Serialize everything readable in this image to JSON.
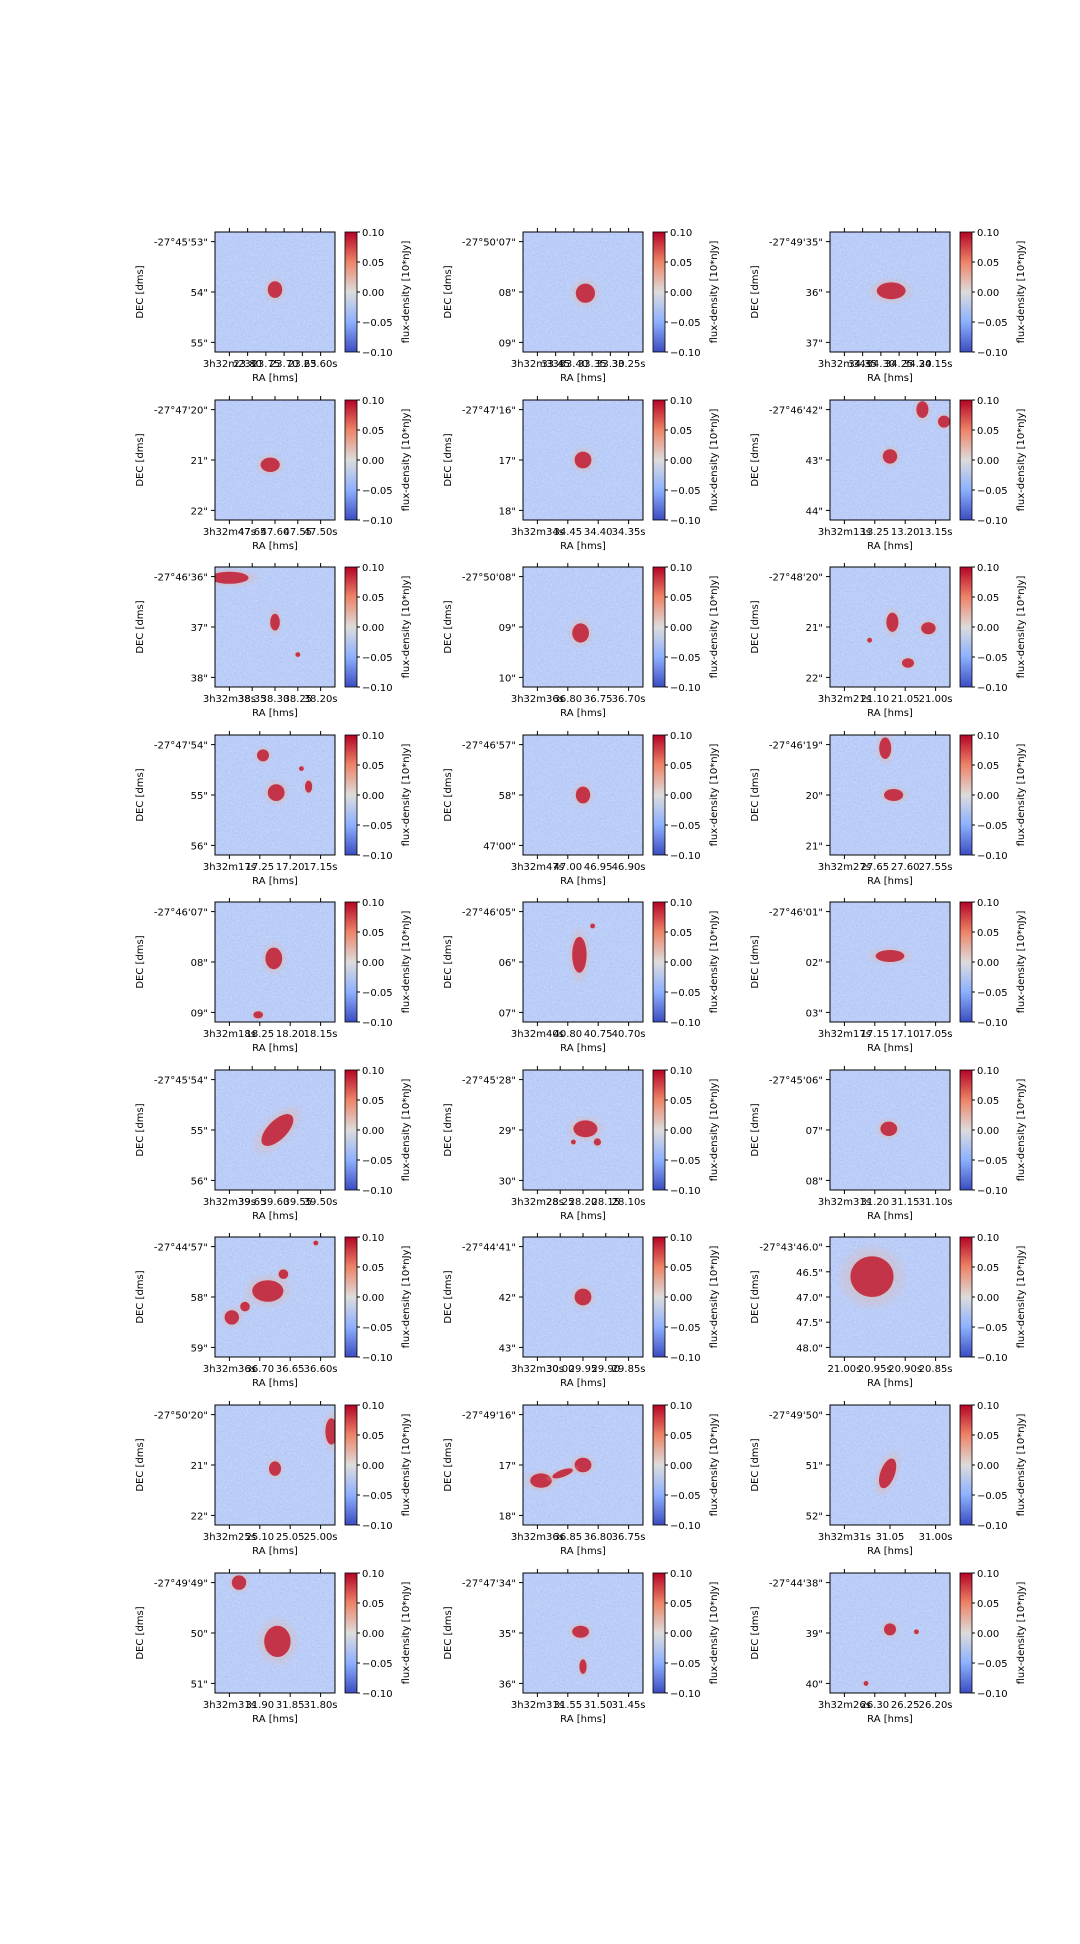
{
  "chart_data": {
    "type": "heatmap",
    "layout": {
      "rows": 9,
      "cols": 3
    },
    "colormap": "coolwarm",
    "clim": [
      -0.1,
      0.1
    ],
    "colorbar": {
      "label": "flux-density [10*nJy]",
      "ticks": [
        "0.10",
        "0.05",
        "0.00",
        "−0.05",
        "−0.10"
      ]
    },
    "panels": [
      {
        "xlabel": "RA [hms]",
        "ylabel": "DEC [dms]",
        "xticks": [
          "3h32m23s",
          "23.80",
          "23.75",
          "23.70",
          "23.65",
          "23.60s"
        ],
        "yticks": [
          "-27°45'53\"",
          "54\"",
          "55\""
        ],
        "sources": [
          {
            "x": 0.5,
            "y": 0.48,
            "rx": 0.06,
            "ry": 0.07
          }
        ]
      },
      {
        "xlabel": "RA [hms]",
        "ylabel": "DEC [dms]",
        "xticks": [
          "3h32m33s",
          "33.45",
          "33.40",
          "33.35",
          "33.30",
          "33.25s"
        ],
        "yticks": [
          "-27°50'07\"",
          "08\"",
          "09\""
        ],
        "sources": [
          {
            "x": 0.52,
            "y": 0.51,
            "rx": 0.08,
            "ry": 0.08
          }
        ]
      },
      {
        "xlabel": "RA [hms]",
        "ylabel": "DEC [dms]",
        "xticks": [
          "3h32m34s",
          "34.35",
          "34.30",
          "34.25",
          "34.20",
          "34.15s"
        ],
        "yticks": [
          "-27°49'35\"",
          "36\"",
          "37\""
        ],
        "sources": [
          {
            "x": 0.51,
            "y": 0.49,
            "rx": 0.12,
            "ry": 0.07
          }
        ]
      },
      {
        "xlabel": "RA [hms]",
        "ylabel": "DEC [dms]",
        "xticks": [
          "3h32m47s",
          "47.65",
          "47.60",
          "47.55",
          "47.50s"
        ],
        "yticks": [
          "-27°47'20\"",
          "21\"",
          "22\""
        ],
        "sources": [
          {
            "x": 0.46,
            "y": 0.54,
            "rx": 0.08,
            "ry": 0.06
          }
        ]
      },
      {
        "xlabel": "RA [hms]",
        "ylabel": "DEC [dms]",
        "xticks": [
          "3h32m34s",
          "34.45",
          "34.40",
          "34.35s"
        ],
        "yticks": [
          "-27°47'16\"",
          "17\"",
          "18\""
        ],
        "sources": [
          {
            "x": 0.5,
            "y": 0.5,
            "rx": 0.07,
            "ry": 0.07
          }
        ]
      },
      {
        "xlabel": "RA [hms]",
        "ylabel": "DEC [dms]",
        "xticks": [
          "3h32m13s",
          "13.25",
          "13.20",
          "13.15s"
        ],
        "yticks": [
          "-27°46'42\"",
          "43\"",
          "44\""
        ],
        "sources": [
          {
            "x": 0.5,
            "y": 0.47,
            "rx": 0.06,
            "ry": 0.06
          },
          {
            "x": 0.77,
            "y": 0.08,
            "rx": 0.05,
            "ry": 0.07
          },
          {
            "x": 0.95,
            "y": 0.18,
            "rx": 0.05,
            "ry": 0.05
          }
        ]
      },
      {
        "xlabel": "RA [hms]",
        "ylabel": "DEC [dms]",
        "xticks": [
          "3h32m38s",
          "38.35",
          "38.30",
          "38.25",
          "38.20s"
        ],
        "yticks": [
          "-27°46'36\"",
          "37\"",
          "38\""
        ],
        "sources": [
          {
            "x": 0.12,
            "y": 0.09,
            "rx": 0.16,
            "ry": 0.05
          },
          {
            "x": 0.5,
            "y": 0.46,
            "rx": 0.04,
            "ry": 0.07
          },
          {
            "x": 0.69,
            "y": 0.73,
            "rx": 0.02,
            "ry": 0.02
          }
        ]
      },
      {
        "xlabel": "RA [hms]",
        "ylabel": "DEC [dms]",
        "xticks": [
          "3h32m36s",
          "36.80",
          "36.75",
          "36.70s"
        ],
        "yticks": [
          "-27°50'08\"",
          "09\"",
          "10\""
        ],
        "sources": [
          {
            "x": 0.48,
            "y": 0.55,
            "rx": 0.07,
            "ry": 0.08
          }
        ]
      },
      {
        "xlabel": "RA [hms]",
        "ylabel": "DEC [dms]",
        "xticks": [
          "3h32m21s",
          "21.10",
          "21.05",
          "21.00s"
        ],
        "yticks": [
          "-27°48'20\"",
          "21\"",
          "22\""
        ],
        "sources": [
          {
            "x": 0.52,
            "y": 0.46,
            "rx": 0.05,
            "ry": 0.08
          },
          {
            "x": 0.82,
            "y": 0.51,
            "rx": 0.06,
            "ry": 0.05
          },
          {
            "x": 0.65,
            "y": 0.8,
            "rx": 0.05,
            "ry": 0.04
          },
          {
            "x": 0.33,
            "y": 0.61,
            "rx": 0.02,
            "ry": 0.02
          }
        ]
      },
      {
        "xlabel": "RA [hms]",
        "ylabel": "DEC [dms]",
        "xticks": [
          "3h32m17s",
          "17.25",
          "17.20",
          "17.15s"
        ],
        "yticks": [
          "-27°47'54\"",
          "55\"",
          "56\""
        ],
        "sources": [
          {
            "x": 0.51,
            "y": 0.48,
            "rx": 0.07,
            "ry": 0.07
          },
          {
            "x": 0.4,
            "y": 0.17,
            "rx": 0.05,
            "ry": 0.05
          },
          {
            "x": 0.78,
            "y": 0.43,
            "rx": 0.03,
            "ry": 0.05
          },
          {
            "x": 0.72,
            "y": 0.28,
            "rx": 0.02,
            "ry": 0.02
          }
        ]
      },
      {
        "xlabel": "RA [hms]",
        "ylabel": "DEC [dms]",
        "xticks": [
          "3h32m47s",
          "47.00",
          "46.95",
          "46.90s"
        ],
        "yticks": [
          "-27°46'57\"",
          "58\"",
          "47'00\""
        ],
        "sources": [
          {
            "x": 0.5,
            "y": 0.5,
            "rx": 0.06,
            "ry": 0.07
          }
        ]
      },
      {
        "xlabel": "RA [hms]",
        "ylabel": "DEC [dms]",
        "xticks": [
          "3h32m27s",
          "27.65",
          "27.60",
          "27.55s"
        ],
        "yticks": [
          "-27°46'19\"",
          "20\"",
          "21\""
        ],
        "sources": [
          {
            "x": 0.53,
            "y": 0.5,
            "rx": 0.08,
            "ry": 0.05
          },
          {
            "x": 0.46,
            "y": 0.11,
            "rx": 0.05,
            "ry": 0.09
          }
        ]
      },
      {
        "xlabel": "RA [hms]",
        "ylabel": "DEC [dms]",
        "xticks": [
          "3h32m18s",
          "18.25",
          "18.20",
          "18.15s"
        ],
        "yticks": [
          "-27°46'07\"",
          "08\"",
          "09\""
        ],
        "sources": [
          {
            "x": 0.49,
            "y": 0.47,
            "rx": 0.07,
            "ry": 0.09
          },
          {
            "x": 0.36,
            "y": 0.94,
            "rx": 0.04,
            "ry": 0.03
          }
        ]
      },
      {
        "xlabel": "RA [hms]",
        "ylabel": "DEC [dms]",
        "xticks": [
          "3h32m40s",
          "40.80",
          "40.75",
          "40.70s"
        ],
        "yticks": [
          "-27°46'05\"",
          "06\"",
          "07\""
        ],
        "sources": [
          {
            "x": 0.47,
            "y": 0.44,
            "rx": 0.06,
            "ry": 0.15
          },
          {
            "x": 0.58,
            "y": 0.2,
            "rx": 0.02,
            "ry": 0.02
          }
        ]
      },
      {
        "xlabel": "RA [hms]",
        "ylabel": "DEC [dms]",
        "xticks": [
          "3h32m17s",
          "17.15",
          "17.10",
          "17.05s"
        ],
        "yticks": [
          "-27°46'01\"",
          "02\"",
          "03\""
        ],
        "sources": [
          {
            "x": 0.5,
            "y": 0.45,
            "rx": 0.12,
            "ry": 0.05
          }
        ]
      },
      {
        "xlabel": "RA [hms]",
        "ylabel": "DEC [dms]",
        "xticks": [
          "3h32m39s",
          "39.65",
          "39.60",
          "39.55",
          "39.50s"
        ],
        "yticks": [
          "-27°45'54\"",
          "55\"",
          "56\""
        ],
        "sources": [
          {
            "x": 0.52,
            "y": 0.5,
            "rx": 0.17,
            "ry": 0.08,
            "rot": -45
          }
        ]
      },
      {
        "xlabel": "RA [hms]",
        "ylabel": "DEC [dms]",
        "xticks": [
          "3h32m28s",
          "28.25",
          "28.20",
          "28.15",
          "28.10s"
        ],
        "yticks": [
          "-27°45'28\"",
          "29\"",
          "30\""
        ],
        "sources": [
          {
            "x": 0.52,
            "y": 0.49,
            "rx": 0.1,
            "ry": 0.07
          },
          {
            "x": 0.62,
            "y": 0.6,
            "rx": 0.03,
            "ry": 0.03
          },
          {
            "x": 0.42,
            "y": 0.6,
            "rx": 0.02,
            "ry": 0.02
          }
        ]
      },
      {
        "xlabel": "RA [hms]",
        "ylabel": "DEC [dms]",
        "xticks": [
          "3h32m31s",
          "31.20",
          "31.15",
          "31.10s"
        ],
        "yticks": [
          "-27°45'06\"",
          "07\"",
          "08\""
        ],
        "sources": [
          {
            "x": 0.49,
            "y": 0.49,
            "rx": 0.07,
            "ry": 0.06
          }
        ]
      },
      {
        "xlabel": "RA [hms]",
        "ylabel": "DEC [dms]",
        "xticks": [
          "3h32m36s",
          "36.70",
          "36.65",
          "36.60s"
        ],
        "yticks": [
          "-27°44'57\"",
          "58\"",
          "59\""
        ],
        "sources": [
          {
            "x": 0.44,
            "y": 0.45,
            "rx": 0.13,
            "ry": 0.09
          },
          {
            "x": 0.14,
            "y": 0.67,
            "rx": 0.06,
            "ry": 0.06
          },
          {
            "x": 0.25,
            "y": 0.58,
            "rx": 0.04,
            "ry": 0.04
          },
          {
            "x": 0.57,
            "y": 0.31,
            "rx": 0.04,
            "ry": 0.04
          },
          {
            "x": 0.84,
            "y": 0.05,
            "rx": 0.02,
            "ry": 0.02
          }
        ]
      },
      {
        "xlabel": "RA [hms]",
        "ylabel": "DEC [dms]",
        "xticks": [
          "3h32m30s",
          "30.00",
          "29.95",
          "29.90",
          "29.85s"
        ],
        "yticks": [
          "-27°44'41\"",
          "42\"",
          "43\""
        ],
        "sources": [
          {
            "x": 0.5,
            "y": 0.5,
            "rx": 0.07,
            "ry": 0.07
          }
        ]
      },
      {
        "xlabel": "RA [hms]",
        "ylabel": "DEC [dms]",
        "xticks": [
          "21.00s",
          "20.95s",
          "20.90s",
          "20.85s"
        ],
        "yticks": [
          "-27°43'46.0\"",
          "46.5\"",
          "47.0\"",
          "47.5\"",
          "48.0\""
        ],
        "sources": [
          {
            "x": 0.35,
            "y": 0.33,
            "rx": 0.18,
            "ry": 0.17
          }
        ]
      },
      {
        "xlabel": "RA [hms]",
        "ylabel": "DEC [dms]",
        "xticks": [
          "3h32m25s",
          "25.10",
          "25.05",
          "25.00s"
        ],
        "yticks": [
          "-27°50'20\"",
          "21\"",
          "22\""
        ],
        "sources": [
          {
            "x": 0.5,
            "y": 0.53,
            "rx": 0.05,
            "ry": 0.06
          },
          {
            "x": 0.97,
            "y": 0.22,
            "rx": 0.05,
            "ry": 0.11
          }
        ]
      },
      {
        "xlabel": "RA [hms]",
        "ylabel": "DEC [dms]",
        "xticks": [
          "3h32m36s",
          "36.85",
          "36.80",
          "36.75s"
        ],
        "yticks": [
          "-27°49'16\"",
          "17\"",
          "18\""
        ],
        "sources": [
          {
            "x": 0.5,
            "y": 0.5,
            "rx": 0.07,
            "ry": 0.06
          },
          {
            "x": 0.15,
            "y": 0.63,
            "rx": 0.09,
            "ry": 0.06
          },
          {
            "x": 0.33,
            "y": 0.57,
            "rx": 0.09,
            "ry": 0.03,
            "rot": -20
          }
        ]
      },
      {
        "xlabel": "RA [hms]",
        "ylabel": "DEC [dms]",
        "xticks": [
          "3h32m31s",
          "31.05",
          "31.00s"
        ],
        "yticks": [
          "-27°49'50\"",
          "51\"",
          "52\""
        ],
        "sources": [
          {
            "x": 0.48,
            "y": 0.57,
            "rx": 0.06,
            "ry": 0.13,
            "rot": 20
          }
        ]
      },
      {
        "xlabel": "RA [hms]",
        "ylabel": "DEC [dms]",
        "xticks": [
          "3h32m31s",
          "31.90",
          "31.85",
          "31.80s"
        ],
        "yticks": [
          "-27°49'49\"",
          "50\"",
          "51\""
        ],
        "sources": [
          {
            "x": 0.52,
            "y": 0.57,
            "rx": 0.11,
            "ry": 0.13
          },
          {
            "x": 0.2,
            "y": 0.08,
            "rx": 0.06,
            "ry": 0.06
          }
        ]
      },
      {
        "xlabel": "RA [hms]",
        "ylabel": "DEC [dms]",
        "xticks": [
          "3h32m31s",
          "31.55",
          "31.50",
          "31.45s"
        ],
        "yticks": [
          "-27°47'34\"",
          "35\"",
          "36\""
        ],
        "sources": [
          {
            "x": 0.48,
            "y": 0.49,
            "rx": 0.07,
            "ry": 0.05
          },
          {
            "x": 0.5,
            "y": 0.78,
            "rx": 0.03,
            "ry": 0.06
          }
        ]
      },
      {
        "xlabel": "RA [hms]",
        "ylabel": "DEC [dms]",
        "xticks": [
          "3h32m26s",
          "26.30",
          "26.25",
          "26.20s"
        ],
        "yticks": [
          "-27°44'38\"",
          "39\"",
          "40\""
        ],
        "sources": [
          {
            "x": 0.5,
            "y": 0.47,
            "rx": 0.05,
            "ry": 0.05
          },
          {
            "x": 0.72,
            "y": 0.49,
            "rx": 0.02,
            "ry": 0.02
          },
          {
            "x": 0.3,
            "y": 0.92,
            "rx": 0.02,
            "ry": 0.02
          }
        ]
      }
    ]
  }
}
